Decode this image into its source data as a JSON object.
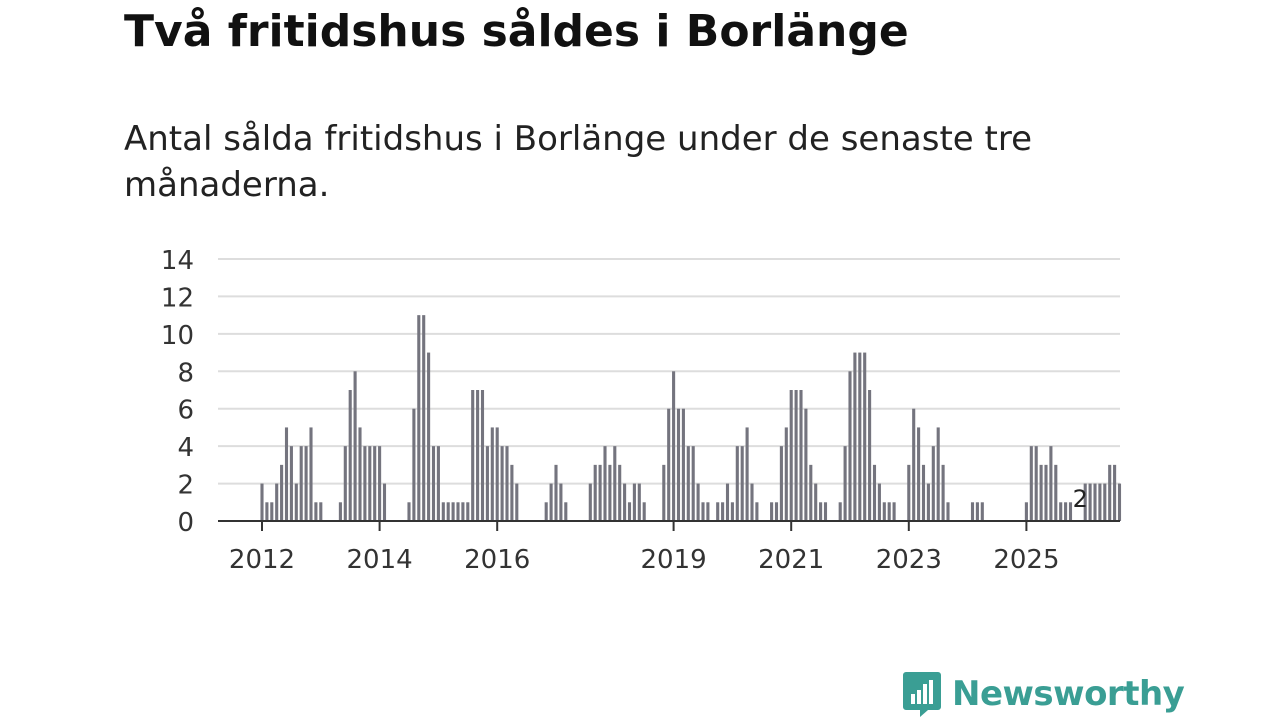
{
  "title": "Två fritidshus såldes i Borlänge",
  "subtitle": "Antal sålda fritidshus i Borlänge under de senaste tre månaderna.",
  "brand": {
    "name": "Newsworthy",
    "logo_icon": "bar-chart-bubble-icon",
    "color": "#3a9e94"
  },
  "colors": {
    "bar": "#74747e",
    "highlight": "#1f9e91",
    "grid": "#dddddd",
    "axis": "#333333"
  },
  "chart_data": {
    "type": "bar",
    "title": "Två fritidshus såldes i Borlänge",
    "xlabel": "",
    "ylabel": "",
    "ylim": [
      0,
      14
    ],
    "yticks": [
      "0",
      "2",
      "4",
      "6",
      "8",
      "10",
      "12",
      "14"
    ],
    "x_tick_labels": [
      {
        "label": "2012",
        "index": 0
      },
      {
        "label": "2014",
        "index": 24
      },
      {
        "label": "2016",
        "index": 48
      },
      {
        "label": "2019",
        "index": 84
      },
      {
        "label": "2021",
        "index": 108
      },
      {
        "label": "2023",
        "index": 132
      },
      {
        "label": "2025",
        "index": 156
      }
    ],
    "start_month": "2012-01",
    "values": [
      2,
      1,
      1,
      2,
      3,
      5,
      4,
      2,
      4,
      4,
      5,
      1,
      1,
      0,
      0,
      0,
      1,
      4,
      7,
      8,
      5,
      4,
      4,
      4,
      4,
      2,
      0,
      0,
      0,
      0,
      1,
      6,
      11,
      11,
      9,
      4,
      4,
      1,
      1,
      1,
      1,
      1,
      1,
      7,
      7,
      7,
      4,
      5,
      5,
      4,
      4,
      3,
      2,
      0,
      0,
      0,
      0,
      0,
      1,
      2,
      3,
      2,
      1,
      0,
      0,
      0,
      0,
      2,
      3,
      3,
      4,
      3,
      4,
      3,
      2,
      1,
      2,
      2,
      1,
      0,
      0,
      0,
      3,
      6,
      8,
      6,
      6,
      4,
      4,
      2,
      1,
      1,
      0,
      1,
      1,
      2,
      1,
      4,
      4,
      5,
      2,
      1,
      0,
      0,
      1,
      1,
      4,
      5,
      7,
      7,
      7,
      6,
      3,
      2,
      1,
      1,
      0,
      0,
      1,
      4,
      8,
      9,
      9,
      9,
      7,
      3,
      2,
      1,
      1,
      1,
      0,
      0,
      3,
      6,
      5,
      3,
      2,
      4,
      5,
      3,
      1,
      0,
      0,
      0,
      0,
      1,
      1,
      1,
      0,
      0,
      0,
      0,
      0,
      0,
      0,
      0,
      1,
      4,
      4,
      3,
      3,
      4,
      3,
      1,
      1,
      1,
      0,
      0,
      2,
      2,
      2,
      2,
      2,
      3,
      3,
      2
    ],
    "highlight_index": 167,
    "highlight_label": "2"
  }
}
